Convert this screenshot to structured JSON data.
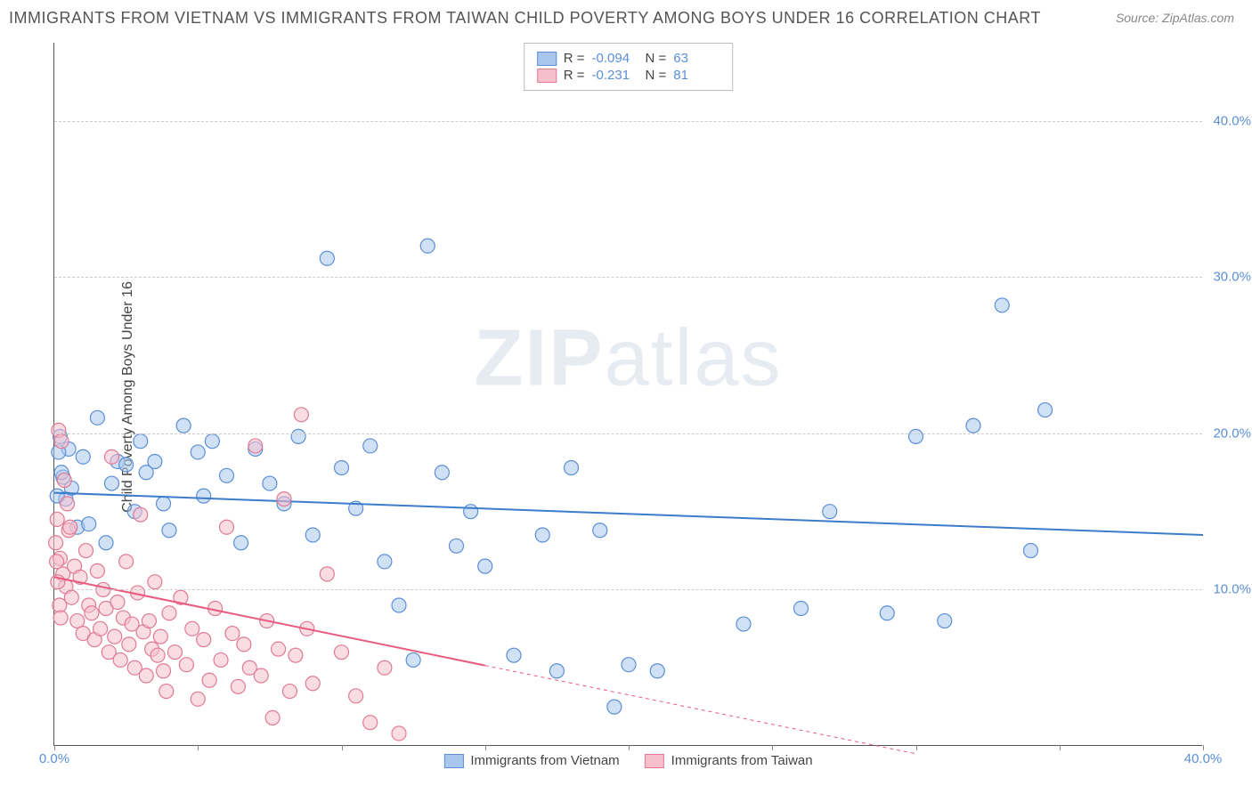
{
  "title": "IMMIGRANTS FROM VIETNAM VS IMMIGRANTS FROM TAIWAN CHILD POVERTY AMONG BOYS UNDER 16 CORRELATION CHART",
  "source": "Source: ZipAtlas.com",
  "ylabel": "Child Poverty Among Boys Under 16",
  "watermark_bold": "ZIP",
  "watermark_rest": "atlas",
  "chart": {
    "type": "scatter",
    "xlim": [
      0,
      40
    ],
    "ylim": [
      0,
      45
    ],
    "y_gridlines": [
      10,
      20,
      30,
      40
    ],
    "y_ticklabels": [
      "10.0%",
      "20.0%",
      "30.0%",
      "40.0%"
    ],
    "x_ticks": [
      0,
      5,
      10,
      15,
      20,
      25,
      30,
      35,
      40
    ],
    "x_ticklabels_at": {
      "0": "0.0%",
      "40": "40.0%"
    },
    "background_color": "#ffffff",
    "grid_color": "#cccccc",
    "axis_color": "#555555",
    "tick_label_color": "#5b8fd6",
    "marker_radius": 8,
    "marker_opacity": 0.55,
    "marker_stroke_width": 1.2,
    "line_width": 2,
    "series": [
      {
        "name": "Immigrants from Vietnam",
        "fill_color": "#a9c7ec",
        "stroke_color": "#5b8fd6",
        "line_color": "#3d7cc9",
        "R": "-0.094",
        "N": "63",
        "trend": {
          "x1": 0,
          "y1": 16.2,
          "x2": 40,
          "y2": 13.5,
          "solid_until_x": 40
        },
        "points": [
          [
            0.2,
            19.8
          ],
          [
            0.3,
            17.2
          ],
          [
            0.4,
            15.8
          ],
          [
            0.5,
            19.0
          ],
          [
            0.6,
            16.5
          ],
          [
            0.8,
            14.0
          ],
          [
            1.0,
            18.5
          ],
          [
            1.2,
            14.2
          ],
          [
            1.5,
            21.0
          ],
          [
            1.8,
            13.0
          ],
          [
            2.0,
            16.8
          ],
          [
            2.2,
            18.2
          ],
          [
            2.5,
            18.0
          ],
          [
            2.8,
            15.0
          ],
          [
            3.0,
            19.5
          ],
          [
            3.2,
            17.5
          ],
          [
            3.5,
            18.2
          ],
          [
            3.8,
            15.5
          ],
          [
            4.0,
            13.8
          ],
          [
            4.5,
            20.5
          ],
          [
            5.0,
            18.8
          ],
          [
            5.2,
            16.0
          ],
          [
            5.5,
            19.5
          ],
          [
            6.0,
            17.3
          ],
          [
            6.5,
            13.0
          ],
          [
            7.0,
            19.0
          ],
          [
            7.5,
            16.8
          ],
          [
            8.0,
            15.5
          ],
          [
            8.5,
            19.8
          ],
          [
            9.0,
            13.5
          ],
          [
            9.5,
            31.2
          ],
          [
            10.0,
            17.8
          ],
          [
            10.5,
            15.2
          ],
          [
            11.0,
            19.2
          ],
          [
            11.5,
            11.8
          ],
          [
            12.0,
            9.0
          ],
          [
            12.5,
            5.5
          ],
          [
            13.0,
            32.0
          ],
          [
            13.5,
            17.5
          ],
          [
            14.0,
            12.8
          ],
          [
            14.5,
            15.0
          ],
          [
            15.0,
            11.5
          ],
          [
            16.0,
            5.8
          ],
          [
            17.0,
            13.5
          ],
          [
            17.5,
            4.8
          ],
          [
            18.0,
            17.8
          ],
          [
            19.0,
            13.8
          ],
          [
            19.5,
            2.5
          ],
          [
            20.0,
            5.2
          ],
          [
            21.0,
            4.8
          ],
          [
            24.0,
            7.8
          ],
          [
            26.0,
            8.8
          ],
          [
            27.0,
            15.0
          ],
          [
            29.0,
            8.5
          ],
          [
            30.0,
            19.8
          ],
          [
            31.0,
            8.0
          ],
          [
            32.0,
            20.5
          ],
          [
            33.0,
            28.2
          ],
          [
            34.0,
            12.5
          ],
          [
            34.5,
            21.5
          ],
          [
            0.1,
            16.0
          ],
          [
            0.15,
            18.8
          ],
          [
            0.25,
            17.5
          ]
        ]
      },
      {
        "name": "Immigrants from Taiwan",
        "fill_color": "#f5c0cc",
        "stroke_color": "#e07a95",
        "line_color": "#e85a7f",
        "R": "-0.231",
        "N": "81",
        "trend": {
          "x1": 0,
          "y1": 10.8,
          "x2": 30,
          "y2": -0.5,
          "solid_until_x": 15
        },
        "points": [
          [
            0.1,
            14.5
          ],
          [
            0.2,
            12.0
          ],
          [
            0.3,
            11.0
          ],
          [
            0.4,
            10.2
          ],
          [
            0.5,
            13.8
          ],
          [
            0.6,
            9.5
          ],
          [
            0.7,
            11.5
          ],
          [
            0.8,
            8.0
          ],
          [
            0.9,
            10.8
          ],
          [
            1.0,
            7.2
          ],
          [
            1.1,
            12.5
          ],
          [
            1.2,
            9.0
          ],
          [
            1.3,
            8.5
          ],
          [
            1.4,
            6.8
          ],
          [
            1.5,
            11.2
          ],
          [
            1.6,
            7.5
          ],
          [
            1.7,
            10.0
          ],
          [
            1.8,
            8.8
          ],
          [
            1.9,
            6.0
          ],
          [
            2.0,
            18.5
          ],
          [
            2.1,
            7.0
          ],
          [
            2.2,
            9.2
          ],
          [
            2.3,
            5.5
          ],
          [
            2.4,
            8.2
          ],
          [
            2.5,
            11.8
          ],
          [
            2.6,
            6.5
          ],
          [
            2.7,
            7.8
          ],
          [
            2.8,
            5.0
          ],
          [
            2.9,
            9.8
          ],
          [
            3.0,
            14.8
          ],
          [
            3.1,
            7.3
          ],
          [
            3.2,
            4.5
          ],
          [
            3.3,
            8.0
          ],
          [
            3.4,
            6.2
          ],
          [
            3.5,
            10.5
          ],
          [
            3.6,
            5.8
          ],
          [
            3.7,
            7.0
          ],
          [
            3.8,
            4.8
          ],
          [
            3.9,
            3.5
          ],
          [
            4.0,
            8.5
          ],
          [
            4.2,
            6.0
          ],
          [
            4.4,
            9.5
          ],
          [
            4.6,
            5.2
          ],
          [
            4.8,
            7.5
          ],
          [
            5.0,
            3.0
          ],
          [
            5.2,
            6.8
          ],
          [
            5.4,
            4.2
          ],
          [
            5.6,
            8.8
          ],
          [
            5.8,
            5.5
          ],
          [
            6.0,
            14.0
          ],
          [
            6.2,
            7.2
          ],
          [
            6.4,
            3.8
          ],
          [
            6.6,
            6.5
          ],
          [
            6.8,
            5.0
          ],
          [
            7.0,
            19.2
          ],
          [
            7.2,
            4.5
          ],
          [
            7.4,
            8.0
          ],
          [
            7.6,
            1.8
          ],
          [
            7.8,
            6.2
          ],
          [
            8.0,
            15.8
          ],
          [
            8.2,
            3.5
          ],
          [
            8.4,
            5.8
          ],
          [
            8.6,
            21.2
          ],
          [
            8.8,
            7.5
          ],
          [
            9.0,
            4.0
          ],
          [
            9.5,
            11.0
          ],
          [
            10.0,
            6.0
          ],
          [
            10.5,
            3.2
          ],
          [
            11.0,
            1.5
          ],
          [
            11.5,
            5.0
          ],
          [
            12.0,
            0.8
          ],
          [
            0.15,
            20.2
          ],
          [
            0.25,
            19.5
          ],
          [
            0.35,
            17.0
          ],
          [
            0.45,
            15.5
          ],
          [
            0.55,
            14.0
          ],
          [
            0.05,
            13.0
          ],
          [
            0.08,
            11.8
          ],
          [
            0.12,
            10.5
          ],
          [
            0.18,
            9.0
          ],
          [
            0.22,
            8.2
          ]
        ]
      }
    ]
  },
  "legend_bottom": [
    {
      "label": "Immigrants from Vietnam",
      "fill": "#a9c7ec",
      "stroke": "#5b8fd6"
    },
    {
      "label": "Immigrants from Taiwan",
      "fill": "#f5c0cc",
      "stroke": "#e07a95"
    }
  ]
}
